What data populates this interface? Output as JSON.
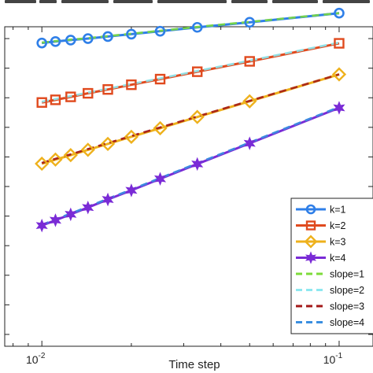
{
  "chart_data": {
    "type": "line",
    "title": "",
    "xlabel": "Time step",
    "ylabel": "",
    "x_scale": "log",
    "y_scale": "log",
    "xlim": [
      0.0075,
      0.13
    ],
    "ylim_log10": [
      -10.4,
      0.4
    ],
    "x_ticks": [
      {
        "base": "10",
        "exp": "-2",
        "value": 0.01
      },
      {
        "base": "10",
        "exp": "-1",
        "value": 0.1
      }
    ],
    "grid": false,
    "legend_placement": "bottom-right",
    "x": [
      0.01,
      0.01111,
      0.0125,
      0.01429,
      0.01667,
      0.02,
      0.025,
      0.03333,
      0.05,
      0.1
    ],
    "series": [
      {
        "name": "k=1",
        "color": "#2f7fe8",
        "marker": "circle",
        "values_log10": [
          -0.15,
          -0.1,
          -0.05,
          0.0,
          0.07,
          0.15,
          0.25,
          0.38,
          0.55,
          0.86
        ]
      },
      {
        "name": "k=2",
        "color": "#e04a1e",
        "marker": "square",
        "values_log10": [
          -2.16,
          -2.07,
          -1.97,
          -1.85,
          -1.72,
          -1.56,
          -1.37,
          -1.12,
          -0.77,
          -0.16
        ]
      },
      {
        "name": "k=3",
        "color": "#eeb11c",
        "marker": "diamond",
        "values_log10": [
          -4.23,
          -4.09,
          -3.94,
          -3.76,
          -3.56,
          -3.32,
          -3.03,
          -2.65,
          -2.12,
          -1.21
        ]
      },
      {
        "name": "k=4",
        "color": "#7a2bd6",
        "marker": "hexagram",
        "values_log10": [
          -6.32,
          -6.14,
          -5.94,
          -5.71,
          -5.44,
          -5.13,
          -4.74,
          -4.24,
          -3.54,
          -2.34
        ]
      }
    ],
    "reference_lines": [
      {
        "name": "slope=1",
        "color": "#7ddb3a",
        "values_log10": [
          -0.14,
          -0.09,
          -0.04,
          0.01,
          0.08,
          0.16,
          0.26,
          0.39,
          0.56,
          0.86
        ]
      },
      {
        "name": "slope=2",
        "color": "#8ee8f0",
        "values_log10": [
          -2.14,
          -2.05,
          -1.95,
          -1.83,
          -1.7,
          -1.54,
          -1.35,
          -1.1,
          -0.75,
          -0.14
        ]
      },
      {
        "name": "slope=3",
        "color": "#a31818",
        "values_log10": [
          -4.21,
          -4.07,
          -3.92,
          -3.74,
          -3.54,
          -3.3,
          -3.01,
          -2.64,
          -2.11,
          -1.21
        ]
      },
      {
        "name": "slope=4",
        "color": "#3a8fe0",
        "values_log10": [
          -6.3,
          -6.12,
          -5.92,
          -5.69,
          -5.42,
          -5.11,
          -4.72,
          -4.22,
          -3.52,
          -2.32
        ]
      }
    ]
  }
}
